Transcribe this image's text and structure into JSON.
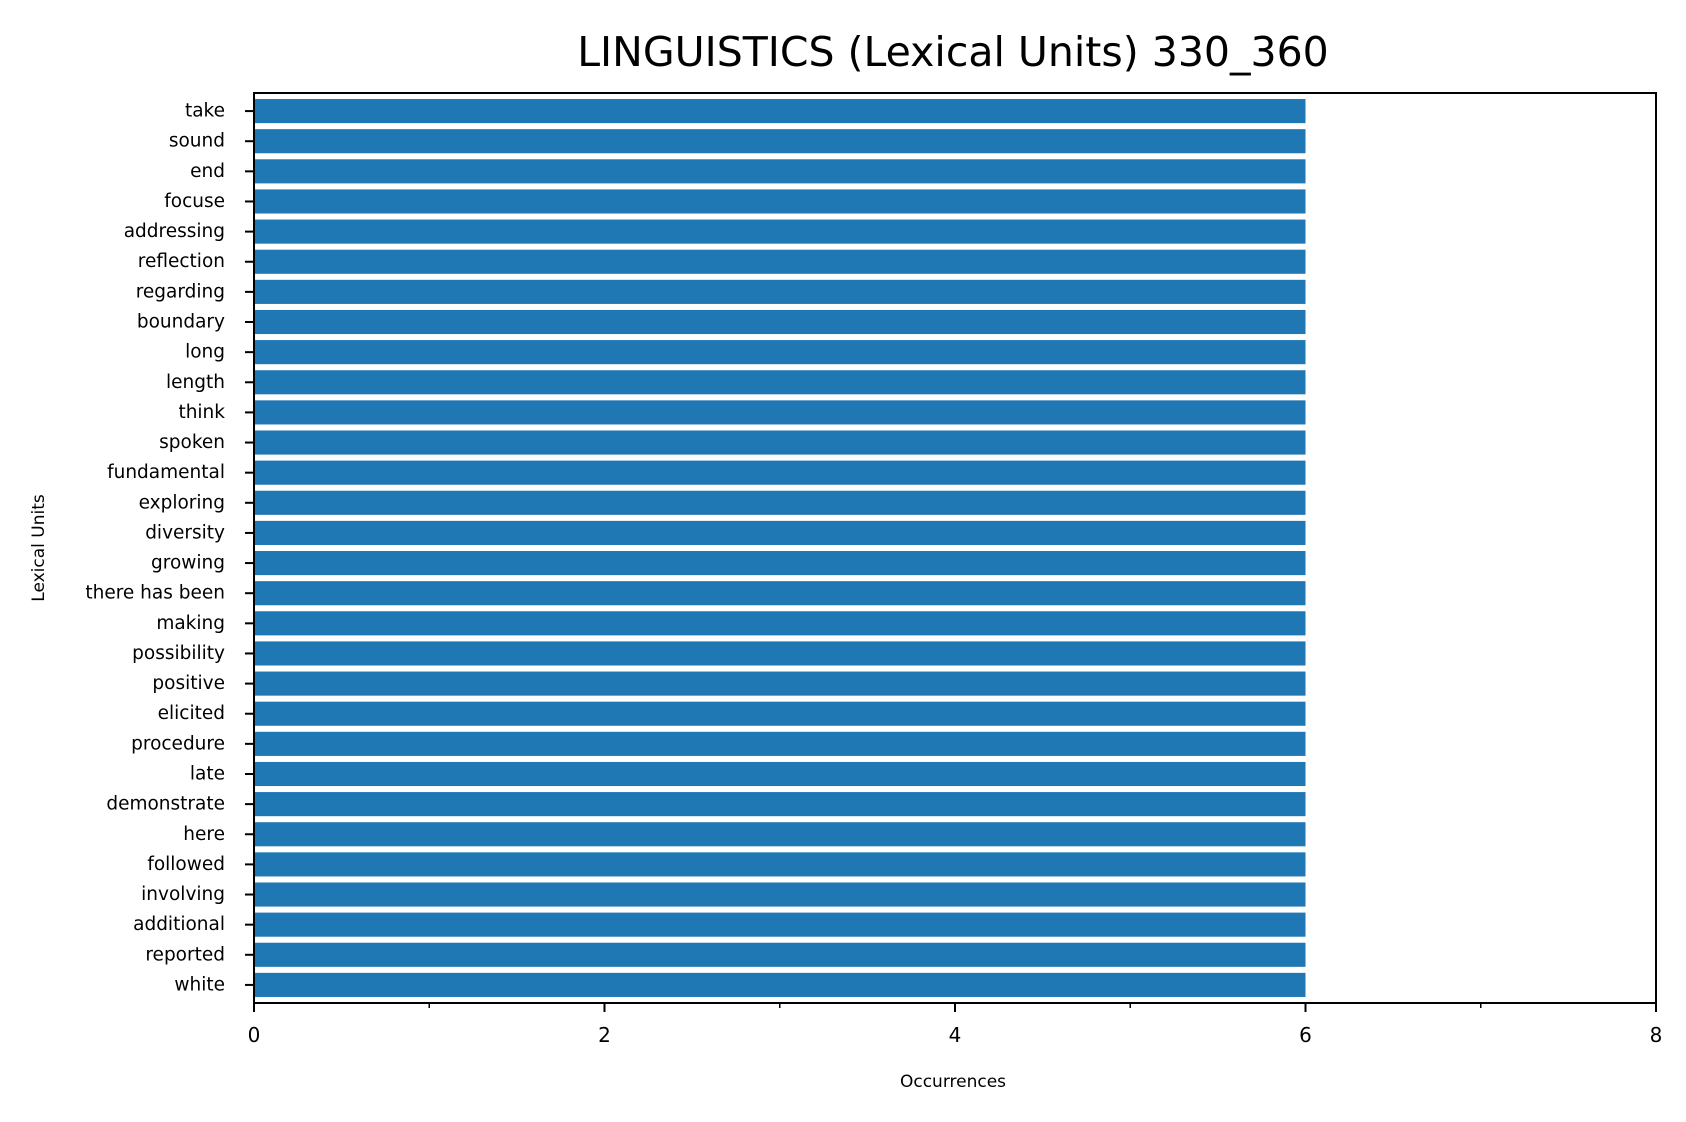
{
  "chart_data": {
    "type": "bar",
    "orientation": "horizontal",
    "title": "LINGUISTICS (Lexical Units) 330_360",
    "xlabel": "Occurrences",
    "ylabel": "Lexical Units",
    "xlim": [
      0,
      8
    ],
    "xticks": [
      0,
      2,
      4,
      6,
      8
    ],
    "xtick_labels": [
      "0",
      "2",
      "4",
      "6",
      "8"
    ],
    "grid": false,
    "bar_color": "#1f77b4",
    "categories": [
      "take",
      "sound",
      "end",
      "focuse",
      "addressing",
      "reflection",
      "regarding",
      "boundary",
      "long",
      "length",
      "think",
      "spoken",
      "fundamental",
      "exploring",
      "diversity",
      "growing",
      "there has been",
      "making",
      "possibility",
      "positive",
      "elicited",
      "procedure",
      "late",
      "demonstrate",
      "here",
      "followed",
      "involving",
      "additional",
      "reported",
      "white"
    ],
    "values": [
      6,
      6,
      6,
      6,
      6,
      6,
      6,
      6,
      6,
      6,
      6,
      6,
      6,
      6,
      6,
      6,
      6,
      6,
      6,
      6,
      6,
      6,
      6,
      6,
      6,
      6,
      6,
      6,
      6,
      6
    ]
  }
}
